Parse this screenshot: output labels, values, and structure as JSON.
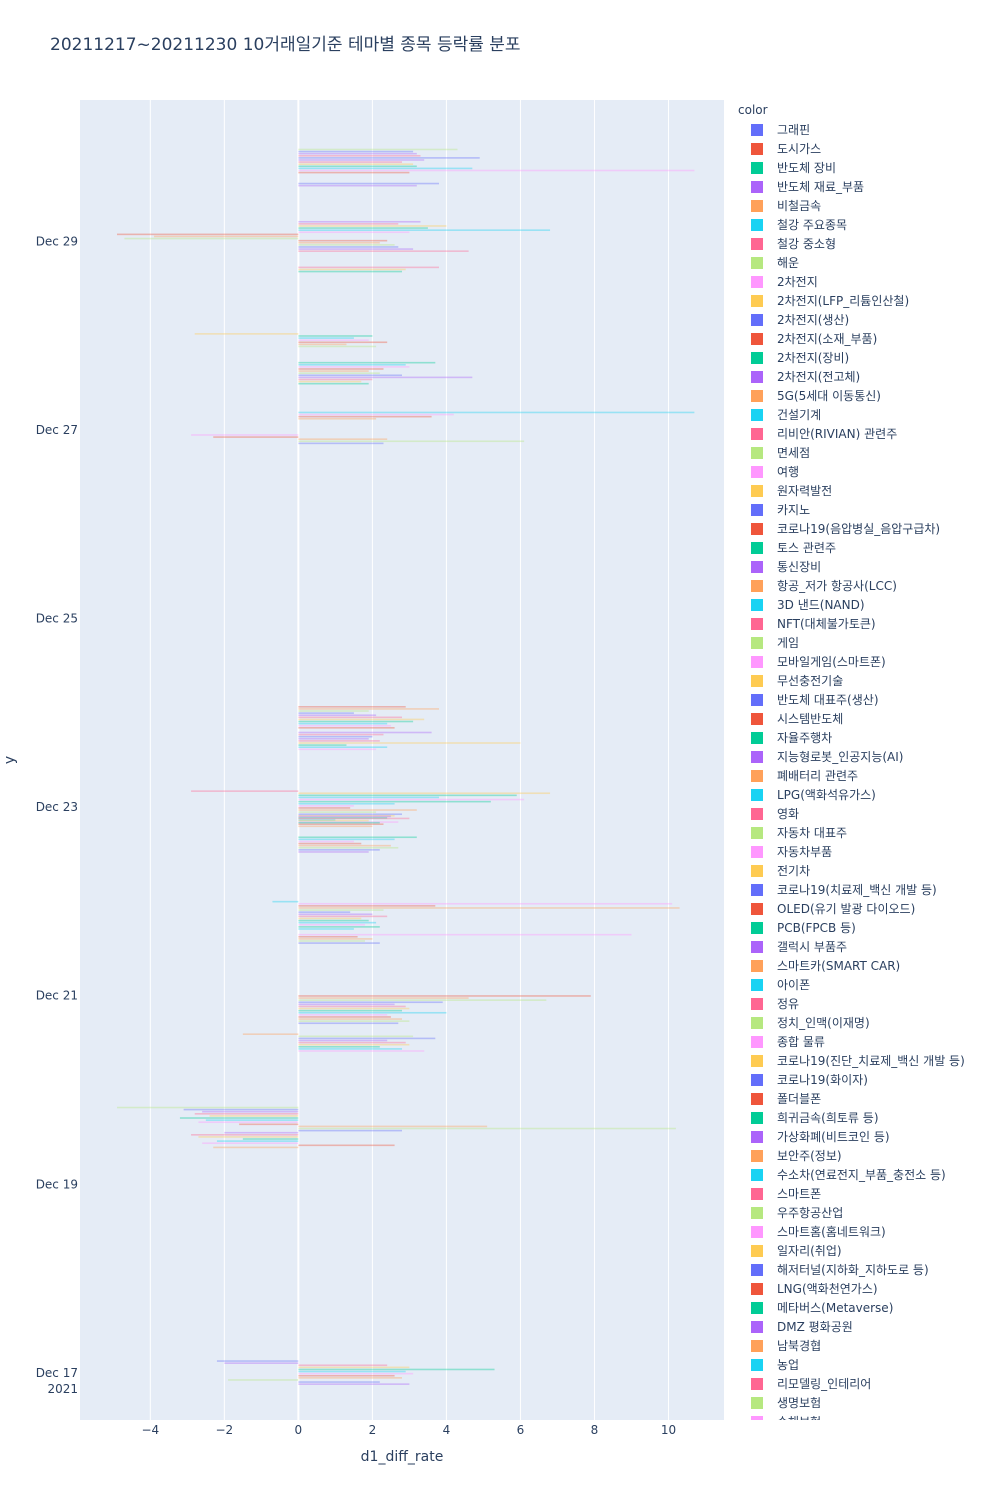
{
  "chart_data": {
    "type": "bar",
    "orientation": "horizontal",
    "title": "20211217~20211230 10거래일기준 테마별 종목 등락률 분포",
    "xlabel": "d1_diff_rate",
    "ylabel": "y",
    "legend_title": "color",
    "xlim": [
      -5.9,
      11.5
    ],
    "x_ticks": [
      -4,
      -2,
      0,
      2,
      4,
      6,
      8,
      10
    ],
    "x_tick_labels": [
      "−4",
      "−2",
      "0",
      "2",
      "4",
      "6",
      "8",
      "10"
    ],
    "y_ticks": [
      {
        "day": 17,
        "label": "Dec 17",
        "sublabel": "2021"
      },
      {
        "day": 19,
        "label": "Dec 19",
        "sublabel": ""
      },
      {
        "day": 21,
        "label": "Dec 21",
        "sublabel": ""
      },
      {
        "day": 23,
        "label": "Dec 23",
        "sublabel": ""
      },
      {
        "day": 25,
        "label": "Dec 25",
        "sublabel": ""
      },
      {
        "day": 27,
        "label": "Dec 27",
        "sublabel": ""
      },
      {
        "day": 29,
        "label": "Dec 29",
        "sublabel": ""
      }
    ],
    "ylim_days": [
      16.5,
      30.5
    ],
    "bar_opacity": 0.38,
    "series": [
      {
        "name": "그래핀",
        "color": "#636efa"
      },
      {
        "name": "도시가스",
        "color": "#EF553B"
      },
      {
        "name": "반도체 장비",
        "color": "#00cc96"
      },
      {
        "name": "반도체 재료_부품",
        "color": "#ab63fa"
      },
      {
        "name": "비철금속",
        "color": "#FFA15A"
      },
      {
        "name": "철강 주요종목",
        "color": "#19d3f3"
      },
      {
        "name": "철강 중소형",
        "color": "#FF6692"
      },
      {
        "name": "해운",
        "color": "#B6E880"
      },
      {
        "name": "2차전지",
        "color": "#FF97FF"
      },
      {
        "name": "2차전지(LFP_리튬인산철)",
        "color": "#FECB52"
      },
      {
        "name": "2차전지(생산)",
        "color": "#636efa"
      },
      {
        "name": "2차전지(소재_부품)",
        "color": "#EF553B"
      },
      {
        "name": "2차전지(장비)",
        "color": "#00cc96"
      },
      {
        "name": "2차전지(전고체)",
        "color": "#ab63fa"
      },
      {
        "name": "5G(5세대 이동통신)",
        "color": "#FFA15A"
      },
      {
        "name": "건설기계",
        "color": "#19d3f3"
      },
      {
        "name": "리비안(RIVIAN) 관련주",
        "color": "#FF6692"
      },
      {
        "name": "면세점",
        "color": "#B6E880"
      },
      {
        "name": "여행",
        "color": "#FF97FF"
      },
      {
        "name": "원자력발전",
        "color": "#FECB52"
      },
      {
        "name": "카지노",
        "color": "#636efa"
      },
      {
        "name": "코로나19(음압병실_음압구급차)",
        "color": "#EF553B"
      },
      {
        "name": "토스 관련주",
        "color": "#00cc96"
      },
      {
        "name": "통신장비",
        "color": "#ab63fa"
      },
      {
        "name": "항공_저가 항공사(LCC)",
        "color": "#FFA15A"
      },
      {
        "name": "3D 낸드(NAND)",
        "color": "#19d3f3"
      },
      {
        "name": "NFT(대체불가토큰)",
        "color": "#FF6692"
      },
      {
        "name": "게임",
        "color": "#B6E880"
      },
      {
        "name": "모바일게임(스마트폰)",
        "color": "#FF97FF"
      },
      {
        "name": "무선충전기술",
        "color": "#FECB52"
      },
      {
        "name": "반도체 대표주(생산)",
        "color": "#636efa"
      },
      {
        "name": "시스템반도체",
        "color": "#EF553B"
      },
      {
        "name": "자율주행차",
        "color": "#00cc96"
      },
      {
        "name": "지능형로봇_인공지능(AI)",
        "color": "#ab63fa"
      },
      {
        "name": "폐배터리 관련주",
        "color": "#FFA15A"
      },
      {
        "name": "LPG(액화석유가스)",
        "color": "#19d3f3"
      },
      {
        "name": "영화",
        "color": "#FF6692"
      },
      {
        "name": "자동차 대표주",
        "color": "#B6E880"
      },
      {
        "name": "자동차부품",
        "color": "#FF97FF"
      },
      {
        "name": "전기차",
        "color": "#FECB52"
      },
      {
        "name": "코로나19(치료제_백신 개발 등)",
        "color": "#636efa"
      },
      {
        "name": "OLED(유기 발광 다이오드)",
        "color": "#EF553B"
      },
      {
        "name": "PCB(FPCB 등)",
        "color": "#00cc96"
      },
      {
        "name": "갤럭시 부품주",
        "color": "#ab63fa"
      },
      {
        "name": "스마트카(SMART CAR)",
        "color": "#FFA15A"
      },
      {
        "name": "아이폰",
        "color": "#19d3f3"
      },
      {
        "name": "정유",
        "color": "#FF6692"
      },
      {
        "name": "정치_인맥(이재명)",
        "color": "#B6E880"
      },
      {
        "name": "종합 물류",
        "color": "#FF97FF"
      },
      {
        "name": "코로나19(진단_치료제_백신 개발 등)",
        "color": "#FECB52"
      },
      {
        "name": "코로나19(화이자)",
        "color": "#636efa"
      },
      {
        "name": "폴더블폰",
        "color": "#EF553B"
      },
      {
        "name": "희귀금속(희토류 등)",
        "color": "#00cc96"
      },
      {
        "name": "가상화폐(비트코인 등)",
        "color": "#ab63fa"
      },
      {
        "name": "보안주(정보)",
        "color": "#FFA15A"
      },
      {
        "name": "수소차(연료전지_부품_충전소 등)",
        "color": "#19d3f3"
      },
      {
        "name": "스마트폰",
        "color": "#FF6692"
      },
      {
        "name": "우주항공산업",
        "color": "#B6E880"
      },
      {
        "name": "스마트홈(홈네트워크)",
        "color": "#FF97FF"
      },
      {
        "name": "일자리(취업)",
        "color": "#FECB52"
      },
      {
        "name": "해저터널(지하화_지하도로 등)",
        "color": "#636efa"
      },
      {
        "name": "LNG(액화천연가스)",
        "color": "#EF553B"
      },
      {
        "name": "메타버스(Metaverse)",
        "color": "#00cc96"
      },
      {
        "name": "DMZ 평화공원",
        "color": "#ab63fa"
      },
      {
        "name": "남북경협",
        "color": "#FFA15A"
      },
      {
        "name": "농업",
        "color": "#19d3f3"
      },
      {
        "name": "리모델링_인테리어",
        "color": "#FF6692"
      },
      {
        "name": "생명보험",
        "color": "#B6E880"
      },
      {
        "name": "손해보험",
        "color": "#FF97FF"
      }
    ],
    "groups": [
      {
        "day": 17,
        "values": [
          -2.2,
          -2.0,
          2.4,
          3.0,
          5.3,
          2.9,
          3.1,
          2.6,
          2.8,
          -1.9,
          2.2,
          3.0
        ]
      },
      {
        "day": 19.6,
        "values": [
          -4.9,
          -3.1,
          -2.6,
          -2.8,
          -2.4,
          -3.2,
          -2.5,
          -2.7,
          -1.6,
          5.1,
          10.2,
          2.8,
          -2.0,
          -2.9,
          -2.7,
          -1.5,
          -2.2,
          -2.6,
          2.6,
          -2.3
        ]
      },
      {
        "day": 20.5,
        "values": [
          -1.5,
          3.1,
          3.7,
          2.4,
          2.9,
          3.0,
          2.2,
          2.8,
          3.4
        ]
      },
      {
        "day": 20.85,
        "values": [
          7.9,
          4.6,
          6.7,
          3.9,
          2.6,
          2.9,
          3.0,
          2.8,
          4.0,
          2.4,
          2.5,
          2.8,
          3.0,
          2.7
        ]
      },
      {
        "day": 21.6,
        "values": [
          9.0,
          1.6,
          2.0,
          1.8,
          2.2
        ]
      },
      {
        "day": 21.85,
        "values": [
          -0.7,
          10.1,
          3.7,
          10.3,
          2.3,
          1.4,
          2.0,
          2.4,
          1.7,
          1.9,
          2.1,
          1.8,
          2.2,
          1.5
        ]
      },
      {
        "day": 22.6,
        "values": [
          3.2,
          2.6,
          1.5,
          1.7,
          2.5,
          2.7,
          2.2,
          1.9
        ]
      },
      {
        "day": 22.85,
        "values": [
          2.6,
          2.4,
          1.0,
          2.7,
          2.3,
          2.0
        ]
      },
      {
        "day": 23.0,
        "values": [
          -2.9,
          6.8,
          5.9,
          3.8,
          6.1,
          5.2,
          2.6,
          1.5,
          1.4,
          3.2,
          2.1,
          2.8,
          2.5,
          3.0,
          1.9,
          2.2
        ]
      },
      {
        "day": 23.7,
        "values": [
          3.6,
          2.3,
          2.0,
          1.9,
          2.2,
          6.0,
          1.3,
          2.4,
          2.1
        ]
      },
      {
        "day": 23.95,
        "values": [
          2.9,
          3.8,
          1.9,
          1.5,
          2.1,
          2.8,
          3.4,
          3.1,
          2.4,
          2.5,
          2.6
        ]
      },
      {
        "day": 26.9,
        "values": [
          -2.9,
          -2.3,
          2.4,
          6.1,
          2.3
        ]
      },
      {
        "day": 27.15,
        "values": [
          10.7,
          4.2,
          3.6,
          2.1
        ]
      },
      {
        "day": 27.6,
        "values": [
          3.7,
          2.9,
          3.0,
          2.3,
          1.9,
          2.2,
          2.8,
          4.7,
          2.0,
          1.7,
          1.9
        ]
      },
      {
        "day": 27.95,
        "values": [
          -2.8,
          2.0,
          1.5,
          1.9,
          2.4,
          1.3,
          2.1
        ]
      },
      {
        "day": 28.7,
        "values": [
          3.8,
          2.9,
          2.8
        ]
      },
      {
        "day": 29.05,
        "values": [
          3.3,
          2.7,
          4.0,
          3.5,
          6.8,
          3.0,
          -4.9,
          -3.9,
          -4.7,
          2.4,
          2.2,
          2.6,
          2.7,
          3.1,
          4.6
        ]
      },
      {
        "day": 29.6,
        "values": [
          3.8,
          3.2
        ]
      },
      {
        "day": 29.85,
        "values": [
          4.3,
          3.1,
          3.2,
          3.3,
          4.9,
          3.4,
          2.8,
          3.1,
          3.2,
          4.7,
          10.7,
          3.0
        ]
      }
    ]
  }
}
